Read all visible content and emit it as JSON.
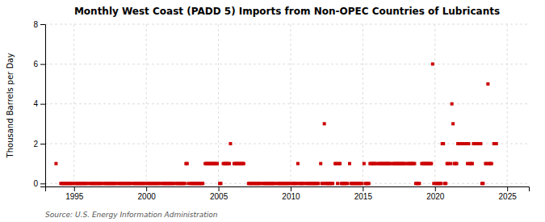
{
  "chart_data": {
    "type": "scatter",
    "title": "Monthly West Coast (PADD 5) Imports from Non-OPEC Countries of Lubricants",
    "ylabel": "Thousand Barrels per Day",
    "source": "Source: U.S. Energy Information Administration",
    "color": "#cc0000",
    "marker": "square",
    "grid": true,
    "xlim": [
      1993.0,
      2026.5
    ],
    "ylim": [
      -0.15,
      8
    ],
    "xticks": [
      1995,
      2000,
      2005,
      2010,
      2015,
      2020,
      2025
    ],
    "yticks": [
      0,
      2,
      4,
      6,
      8
    ],
    "x": [
      1993.75,
      1994.083,
      1994.167,
      1994.25,
      1994.333,
      1994.417,
      1994.5,
      1994.583,
      1994.667,
      1994.75,
      1994.833,
      1994.917,
      1995.083,
      1995.167,
      1995.25,
      1995.333,
      1995.417,
      1995.5,
      1995.583,
      1995.667,
      1995.75,
      1995.833,
      1995.917,
      1996.083,
      1996.167,
      1996.25,
      1996.333,
      1996.417,
      1996.5,
      1996.583,
      1996.667,
      1996.75,
      1996.833,
      1996.917,
      1997.083,
      1997.167,
      1997.25,
      1997.333,
      1997.417,
      1997.5,
      1997.583,
      1997.667,
      1997.75,
      1997.833,
      1997.917,
      1998.083,
      1998.167,
      1998.25,
      1998.333,
      1998.417,
      1998.5,
      1998.583,
      1998.667,
      1998.75,
      1998.833,
      1998.917,
      1999.083,
      1999.167,
      1999.25,
      1999.333,
      1999.417,
      1999.5,
      1999.583,
      1999.667,
      1999.75,
      1999.833,
      1999.917,
      2000.083,
      2000.167,
      2000.25,
      2000.333,
      2000.417,
      2000.5,
      2000.583,
      2000.667,
      2000.75,
      2000.833,
      2000.917,
      2001.083,
      2001.167,
      2001.25,
      2001.333,
      2001.417,
      2001.5,
      2001.583,
      2001.667,
      2001.75,
      2001.833,
      2001.917,
      2002.083,
      2002.167,
      2002.25,
      2002.333,
      2002.417,
      2002.5,
      2002.583,
      2002.667,
      2002.75,
      2002.833,
      2002.917,
      2003.083,
      2003.167,
      2003.25,
      2003.333,
      2003.417,
      2003.5,
      2003.583,
      2003.667,
      2003.75,
      2003.833,
      2003.917,
      2004.083,
      2004.167,
      2004.25,
      2004.333,
      2004.417,
      2004.5,
      2004.583,
      2004.667,
      2004.75,
      2004.833,
      2004.917,
      2005.083,
      2005.167,
      2005.333,
      2005.417,
      2005.5,
      2005.583,
      2005.667,
      2005.75,
      2005.833,
      2006.083,
      2006.167,
      2006.25,
      2006.333,
      2006.417,
      2006.5,
      2006.583,
      2006.667,
      2006.75,
      2007.083,
      2007.167,
      2007.25,
      2007.333,
      2007.417,
      2007.5,
      2007.583,
      2007.667,
      2007.75,
      2007.833,
      2007.917,
      2008.083,
      2008.167,
      2008.25,
      2008.333,
      2008.417,
      2008.5,
      2008.583,
      2008.667,
      2008.75,
      2008.833,
      2008.917,
      2009.083,
      2009.167,
      2009.25,
      2009.333,
      2009.417,
      2009.5,
      2009.583,
      2009.667,
      2009.75,
      2009.833,
      2009.917,
      2010.083,
      2010.167,
      2010.25,
      2010.333,
      2010.417,
      2010.5,
      2010.583,
      2010.667,
      2010.75,
      2010.833,
      2010.917,
      2011.083,
      2011.167,
      2011.25,
      2011.333,
      2011.417,
      2011.5,
      2011.583,
      2011.667,
      2011.75,
      2011.833,
      2011.917,
      2012.083,
      2012.167,
      2012.25,
      2012.333,
      2012.417,
      2012.5,
      2012.583,
      2012.667,
      2012.75,
      2012.833,
      2012.917,
      2013.083,
      2013.167,
      2013.25,
      2013.333,
      2013.417,
      2013.5,
      2013.583,
      2013.667,
      2013.75,
      2013.833,
      2013.917,
      2014.083,
      2014.167,
      2014.25,
      2014.333,
      2014.417,
      2014.5,
      2014.583,
      2014.667,
      2014.75,
      2014.833,
      2014.917,
      2015.083,
      2015.167,
      2015.25,
      2015.333,
      2015.417,
      2015.5,
      2015.583,
      2015.667,
      2015.75,
      2015.833,
      2015.917,
      2016.083,
      2016.167,
      2016.25,
      2016.333,
      2016.417,
      2016.5,
      2016.583,
      2016.667,
      2016.75,
      2016.833,
      2016.917,
      2017.083,
      2017.167,
      2017.25,
      2017.333,
      2017.417,
      2017.5,
      2017.583,
      2017.667,
      2017.75,
      2017.833,
      2017.917,
      2018.083,
      2018.167,
      2018.25,
      2018.333,
      2018.417,
      2018.5,
      2018.583,
      2018.667,
      2018.75,
      2018.833,
      2018.917,
      2019.083,
      2019.167,
      2019.25,
      2019.333,
      2019.417,
      2019.5,
      2019.583,
      2019.667,
      2019.75,
      2019.833,
      2019.917,
      2020.083,
      2020.167,
      2020.25,
      2020.333,
      2020.417,
      2020.5,
      2020.583,
      2020.667,
      2020.75,
      2020.833,
      2020.917,
      2021.083,
      2021.167,
      2021.25,
      2021.333,
      2021.417,
      2021.5,
      2021.583,
      2021.667,
      2021.75,
      2021.833,
      2021.917,
      2022.083,
      2022.167,
      2022.25,
      2022.333,
      2022.417,
      2022.5,
      2022.583,
      2022.667,
      2022.75,
      2022.833,
      2022.917,
      2023.083,
      2023.167,
      2023.25,
      2023.333,
      2023.5,
      2023.583,
      2023.667,
      2023.75,
      2023.833,
      2023.917,
      2024.083,
      2024.167,
      2024.25
    ],
    "values": [
      1,
      0,
      0,
      0,
      0,
      0,
      0,
      0,
      0,
      0,
      0,
      0,
      0,
      0,
      0,
      0,
      0,
      0,
      0,
      0,
      0,
      0,
      0,
      0,
      0,
      0,
      0,
      0,
      0,
      0,
      0,
      0,
      0,
      0,
      0,
      0,
      0,
      0,
      0,
      0,
      0,
      0,
      0,
      0,
      0,
      0,
      0,
      0,
      0,
      0,
      0,
      0,
      0,
      0,
      0,
      0,
      0,
      0,
      0,
      0,
      0,
      0,
      0,
      0,
      0,
      0,
      0,
      0,
      0,
      0,
      0,
      0,
      0,
      0,
      0,
      0,
      0,
      0,
      0,
      0,
      0,
      0,
      0,
      0,
      0,
      0,
      0,
      0,
      0,
      0,
      0,
      0,
      0,
      0,
      0,
      0,
      0,
      1,
      1,
      0,
      0,
      0,
      0,
      0,
      0,
      0,
      0,
      0,
      0,
      0,
      0,
      1,
      1,
      1,
      1,
      1,
      1,
      1,
      1,
      1,
      1,
      1,
      0,
      0,
      1,
      1,
      1,
      1,
      1,
      1,
      2,
      1,
      1,
      1,
      1,
      1,
      1,
      1,
      1,
      1,
      0,
      0,
      0,
      0,
      0,
      0,
      0,
      0,
      0,
      0,
      0,
      0,
      0,
      0,
      0,
      0,
      0,
      0,
      0,
      0,
      0,
      0,
      0,
      0,
      0,
      0,
      0,
      0,
      0,
      0,
      0,
      0,
      0,
      0,
      0,
      0,
      0,
      0,
      1,
      0,
      0,
      0,
      0,
      0,
      0,
      0,
      0,
      0,
      0,
      0,
      0,
      0,
      0,
      0,
      0,
      1,
      0,
      0,
      3,
      0,
      0,
      0,
      0,
      0,
      0,
      0,
      1,
      1,
      0,
      1,
      1,
      0,
      0,
      0,
      0,
      0,
      0,
      1,
      0,
      0,
      0,
      0,
      0,
      0,
      0,
      0,
      0,
      0,
      1,
      0,
      0,
      0,
      0,
      1,
      1,
      1,
      1,
      1,
      1,
      1,
      1,
      1,
      1,
      1,
      1,
      1,
      1,
      1,
      1,
      1,
      1,
      1,
      1,
      1,
      1,
      1,
      1,
      1,
      1,
      1,
      1,
      1,
      1,
      1,
      1,
      1,
      1,
      1,
      0,
      0,
      0,
      0,
      1,
      1,
      1,
      1,
      1,
      1,
      1,
      1,
      1,
      6,
      0,
      0,
      0,
      0,
      0,
      0,
      2,
      2,
      0,
      0,
      1,
      1,
      1,
      4,
      3,
      1,
      1,
      1,
      2,
      2,
      2,
      2,
      2,
      2,
      2,
      1,
      2,
      1,
      1,
      1,
      2,
      2,
      2,
      2,
      2,
      2,
      0,
      0,
      1,
      1,
      5,
      1,
      1,
      1,
      2,
      2,
      2
    ]
  }
}
